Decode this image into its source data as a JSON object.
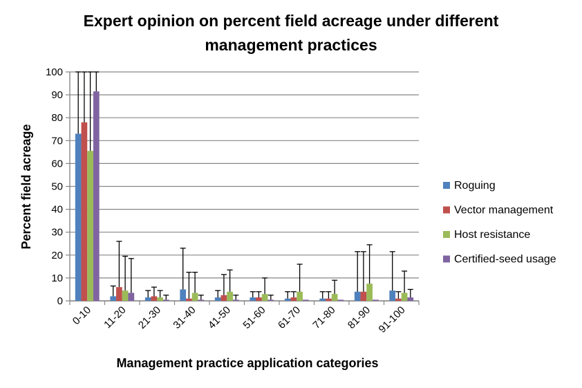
{
  "chart_data": {
    "type": "bar",
    "title_line1": "Expert opinion on percent field acreage under different",
    "title_line2": "management practices",
    "xlabel": "Management practice application categories",
    "ylabel": "Percent field acreage",
    "ylim": [
      0,
      100
    ],
    "yticks": [
      "0",
      "10",
      "20",
      "30",
      "40",
      "50",
      "60",
      "70",
      "80",
      "90",
      "100"
    ],
    "grid": true,
    "legend_position": "right",
    "categories": [
      "0-10",
      "11-20",
      "21-30",
      "31-40",
      "41-50",
      "51-60",
      "61-70",
      "71-80",
      "81-90",
      "91-100"
    ],
    "series": [
      {
        "name": "Roguing",
        "color": "#4F81BD",
        "values": [
          73,
          2,
          1.5,
          5,
          1.5,
          1.5,
          1,
          1,
          4,
          4.5
        ],
        "errors": [
          27,
          4.5,
          3,
          18,
          3,
          2.5,
          3,
          3,
          17.5,
          17
        ]
      },
      {
        "name": "Vector management",
        "color": "#C0504D",
        "values": [
          78,
          6,
          2,
          1,
          2.5,
          1.5,
          1.5,
          1,
          4,
          1
        ],
        "errors": [
          22,
          20,
          4,
          11.5,
          9,
          2.5,
          2.5,
          3,
          17.5,
          3
        ]
      },
      {
        "name": "Host resistance",
        "color": "#9BBB59",
        "values": [
          65.5,
          4.5,
          1.5,
          3.5,
          4,
          3,
          4,
          3,
          7.5,
          3.5
        ],
        "errors": [
          34.5,
          15,
          3,
          9,
          9.5,
          7,
          12,
          6,
          17,
          9.5
        ]
      },
      {
        "name": "Certified-seed usage",
        "color": "#8064A2",
        "values": [
          91.5,
          3.5,
          0.5,
          0.5,
          0.5,
          0.5,
          0.5,
          0.5,
          0.5,
          1.5
        ],
        "errors": [
          8.5,
          15,
          2,
          2,
          2,
          2,
          0,
          0,
          0,
          3.5
        ]
      }
    ]
  }
}
